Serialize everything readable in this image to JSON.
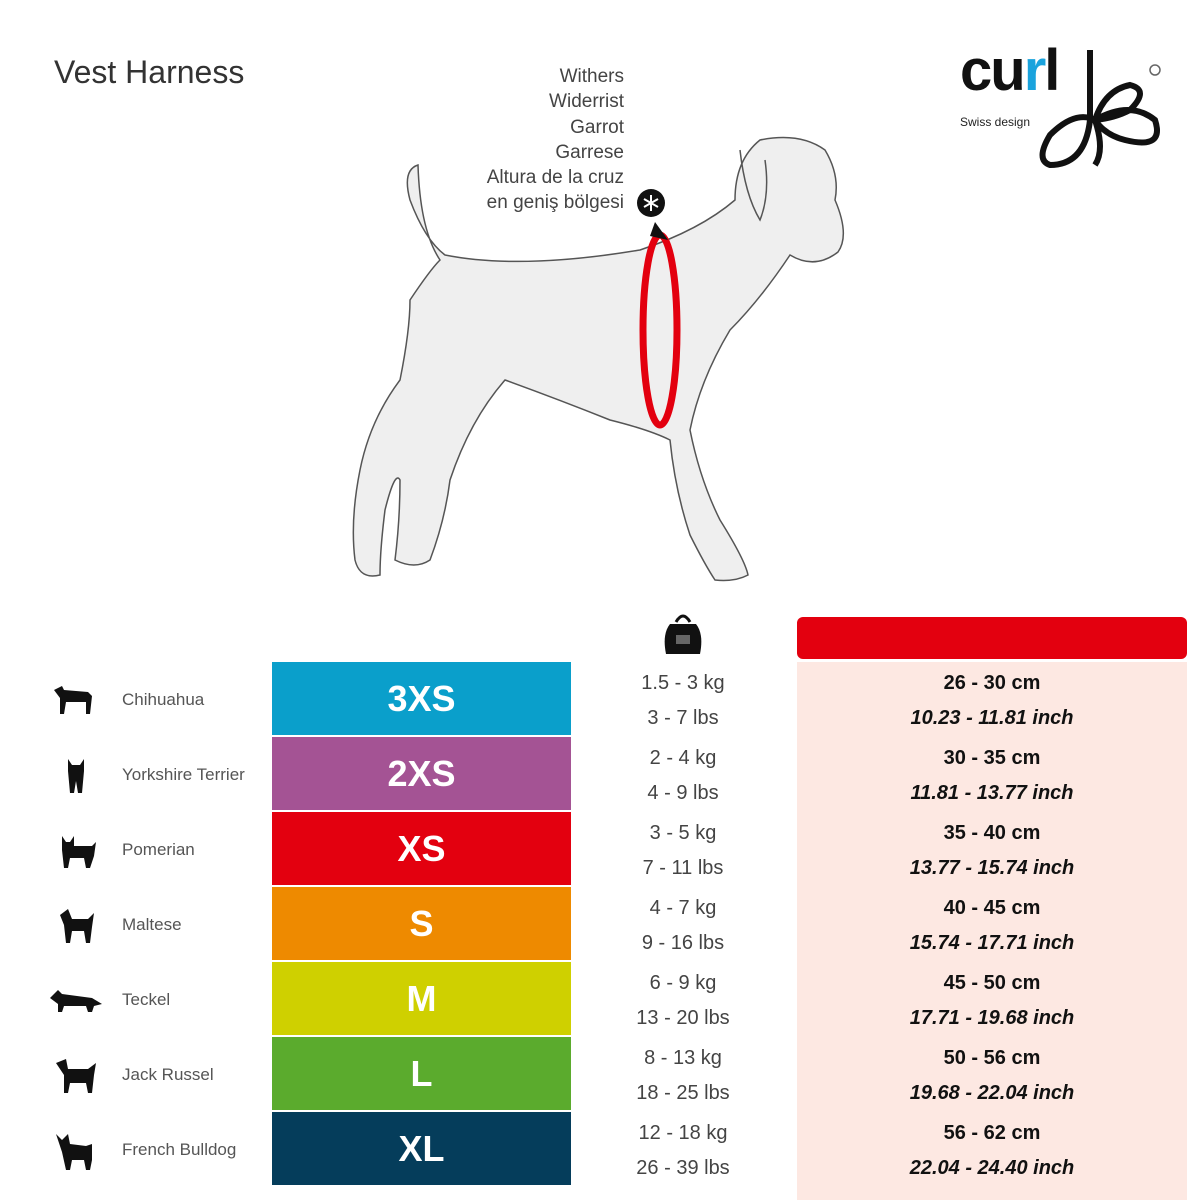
{
  "title": "Vest Harness",
  "withers_labels": [
    "Withers",
    "Widerrist",
    "Garrot",
    "Garrese",
    "Altura de la cruz",
    "en geniş bölgesi"
  ],
  "logo": {
    "text": "curli",
    "tagline": "Swiss design",
    "accent_color": "#1aa3dd"
  },
  "icons": {
    "weight": "kettlebell-kg-icon",
    "withers_marker": "asterisk-marker-icon"
  },
  "colors": {
    "chest_header": "#e3000f",
    "chest_bg": "#fde8e2",
    "harness_ring": "#e3000f"
  },
  "rows": [
    {
      "breed": "Chihuahua",
      "size": "3XS",
      "color": "#0a9fcb",
      "kg": "1.5 - 3 kg",
      "lbs": "3 - 7 lbs",
      "cm": "26 - 30 cm",
      "inch": "10.23 - 11.81 inch"
    },
    {
      "breed": "Yorkshire Terrier",
      "size": "2XS",
      "color": "#a45394",
      "kg": "2 - 4 kg",
      "lbs": "4 - 9 lbs",
      "cm": "30 - 35 cm",
      "inch": "11.81 - 13.77 inch"
    },
    {
      "breed": "Pomerian",
      "size": "XS",
      "color": "#e3000f",
      "kg": "3 - 5 kg",
      "lbs": "7 - 11 lbs",
      "cm": "35 - 40 cm",
      "inch": "13.77 - 15.74 inch"
    },
    {
      "breed": "Maltese",
      "size": "S",
      "color": "#ee8a00",
      "kg": "4 - 7 kg",
      "lbs": "9 - 16 lbs",
      "cm": "40 - 45 cm",
      "inch": "15.74 - 17.71 inch"
    },
    {
      "breed": "Teckel",
      "size": "M",
      "color": "#cfd000",
      "kg": "6 - 9 kg",
      "lbs": "13 - 20 lbs",
      "cm": "45 - 50 cm",
      "inch": "17.71 - 19.68 inch"
    },
    {
      "breed": "Jack Russel",
      "size": "L",
      "color": "#5bab2d",
      "kg": "8 - 13 kg",
      "lbs": "18 - 25 lbs",
      "cm": "50 - 56 cm",
      "inch": "19.68 - 22.04 inch"
    },
    {
      "breed": "French Bulldog",
      "size": "XL",
      "color": "#053d5b",
      "kg": "12 - 18 kg",
      "lbs": "26 - 39 lbs",
      "cm": "56 - 62 cm",
      "inch": "22.04 - 24.40 inch"
    }
  ]
}
